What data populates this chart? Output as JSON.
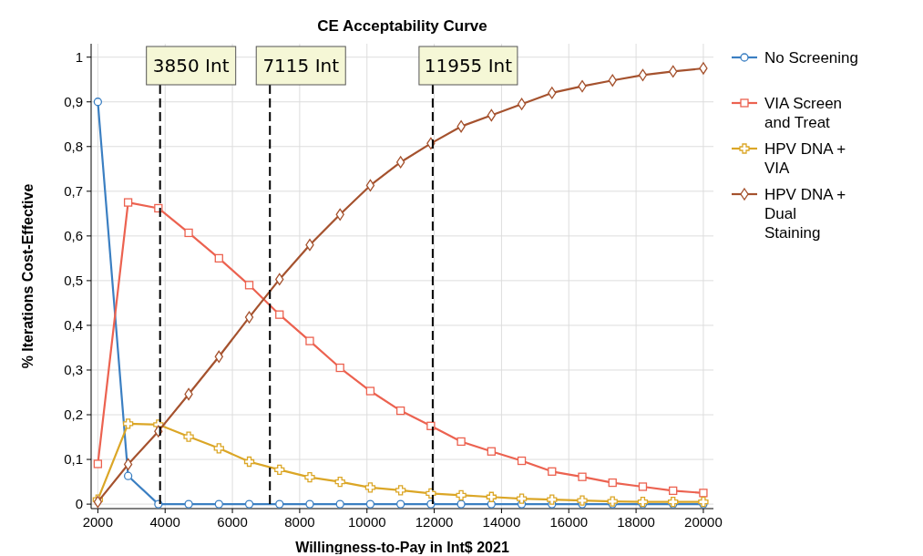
{
  "chart_data": {
    "type": "line",
    "title": "CE Acceptability Curve",
    "xlabel": "Willingness-to-Pay in Int$ 2021",
    "ylabel": "% Iterations Cost-Effective",
    "x": [
      2000,
      2900,
      3800,
      4700,
      5600,
      6500,
      7400,
      8300,
      9200,
      10100,
      11000,
      11900,
      12800,
      13700,
      14600,
      15500,
      16400,
      17300,
      18200,
      19100,
      20000
    ],
    "series": [
      {
        "name": "No Screening",
        "color": "#3b7fc2",
        "marker": "circle",
        "values": [
          0.9,
          0.063,
          0,
          0,
          0,
          0,
          0,
          0,
          0,
          0,
          0,
          0,
          0,
          0,
          0,
          0,
          0,
          0,
          0,
          0,
          0
        ]
      },
      {
        "name": "VIA Screen and Treat",
        "color": "#ec6250",
        "marker": "square",
        "values": [
          0.09,
          0.675,
          0.662,
          0.607,
          0.55,
          0.49,
          0.424,
          0.365,
          0.305,
          0.253,
          0.209,
          0.175,
          0.14,
          0.118,
          0.097,
          0.073,
          0.061,
          0.048,
          0.039,
          0.03,
          0.025
        ]
      },
      {
        "name": "HPV DNA + VIA",
        "color": "#dba626",
        "marker": "cross",
        "values": [
          0.01,
          0.18,
          0.178,
          0.151,
          0.125,
          0.095,
          0.077,
          0.06,
          0.05,
          0.037,
          0.031,
          0.024,
          0.02,
          0.016,
          0.012,
          0.01,
          0.008,
          0.006,
          0.005,
          0.005,
          0.005
        ]
      },
      {
        "name": "HPV DNA + Dual Staining",
        "color": "#a5522e",
        "marker": "diamond",
        "values": [
          0.005,
          0.089,
          0.163,
          0.246,
          0.33,
          0.418,
          0.503,
          0.58,
          0.648,
          0.713,
          0.765,
          0.807,
          0.845,
          0.87,
          0.895,
          0.92,
          0.935,
          0.948,
          0.96,
          0.968,
          0.975
        ]
      }
    ],
    "xlim": [
      1800,
      20300
    ],
    "xticks": [
      2000,
      4000,
      6000,
      8000,
      10000,
      12000,
      14000,
      16000,
      18000,
      20000
    ],
    "ylim": [
      -0.01,
      1.03
    ],
    "yticks": [
      0,
      {
        "value": 0.1,
        "label": "0,1"
      },
      {
        "value": 0.2,
        "label": "0,2"
      },
      {
        "value": 0.3,
        "label": "0,3"
      },
      {
        "value": 0.4,
        "label": "0,4"
      },
      {
        "value": 0.5,
        "label": "0,5"
      },
      {
        "value": 0.6,
        "label": "0,6"
      },
      {
        "value": 0.7,
        "label": "0,7"
      },
      {
        "value": 0.8,
        "label": "0,8"
      },
      {
        "value": 0.9,
        "label": "0,9"
      },
      1
    ],
    "ref_lines": [
      {
        "axis": "x",
        "value": 3850,
        "label": "3850 Int",
        "line_style": "dashed"
      },
      {
        "axis": "x",
        "value": 7115,
        "label": "7115 Int",
        "line_style": "dashed"
      },
      {
        "axis": "x",
        "value": 11955,
        "label": "11955 Int",
        "line_style": "dashed"
      }
    ],
    "grid": true,
    "legend": "top right",
    "line_style": "solid"
  }
}
